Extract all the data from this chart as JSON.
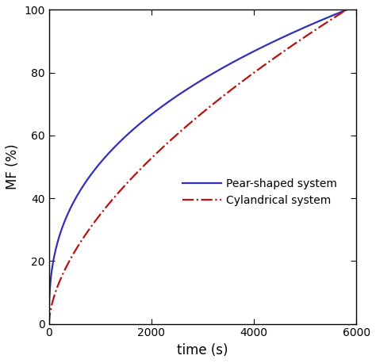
{
  "title": "",
  "xlabel": "time (s)",
  "ylabel": "MF (%)",
  "xlim": [
    0,
    6000
  ],
  "ylim": [
    0,
    100
  ],
  "xticks": [
    0,
    2000,
    4000,
    6000
  ],
  "yticks": [
    0,
    20,
    40,
    60,
    80,
    100
  ],
  "legend": [
    {
      "label": "Pear-shaped system",
      "color": "#3030bb",
      "linestyle": "solid",
      "linewidth": 1.6
    },
    {
      "label": "Cylandrical system",
      "color": "#bb1111",
      "linestyle": "dashdot",
      "linewidth": 1.6
    }
  ],
  "pear_exponent": 0.38,
  "cyl_exponent": 0.6,
  "t_end": 5800,
  "background_color": "#ffffff",
  "figsize": [
    4.74,
    4.58
  ],
  "dpi": 100,
  "spine_color": "#000000",
  "tick_label_fontsize": 10,
  "axis_label_fontsize": 12,
  "legend_fontsize": 10
}
